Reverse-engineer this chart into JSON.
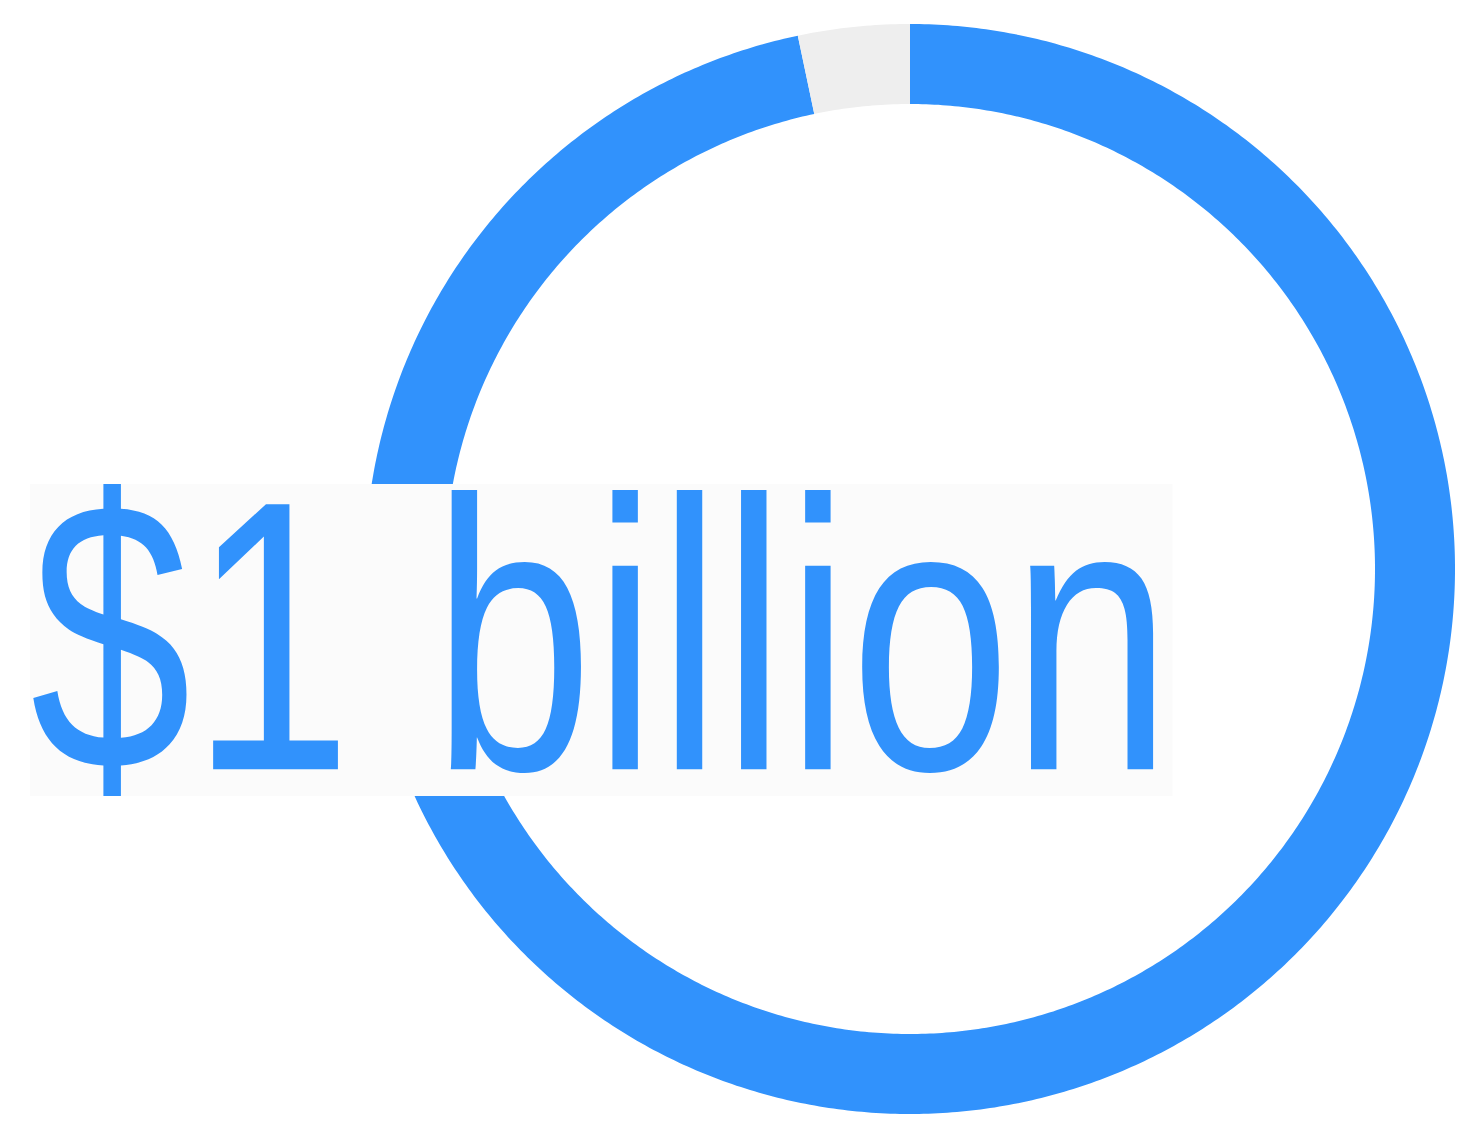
{
  "chart_data": {
    "type": "donut",
    "categories": [
      null,
      null
    ],
    "values": [
      96.7,
      3.3
    ],
    "colors": [
      "#3192fc",
      "#eeeeee"
    ],
    "annotations": [
      "$1 billion"
    ]
  }
}
